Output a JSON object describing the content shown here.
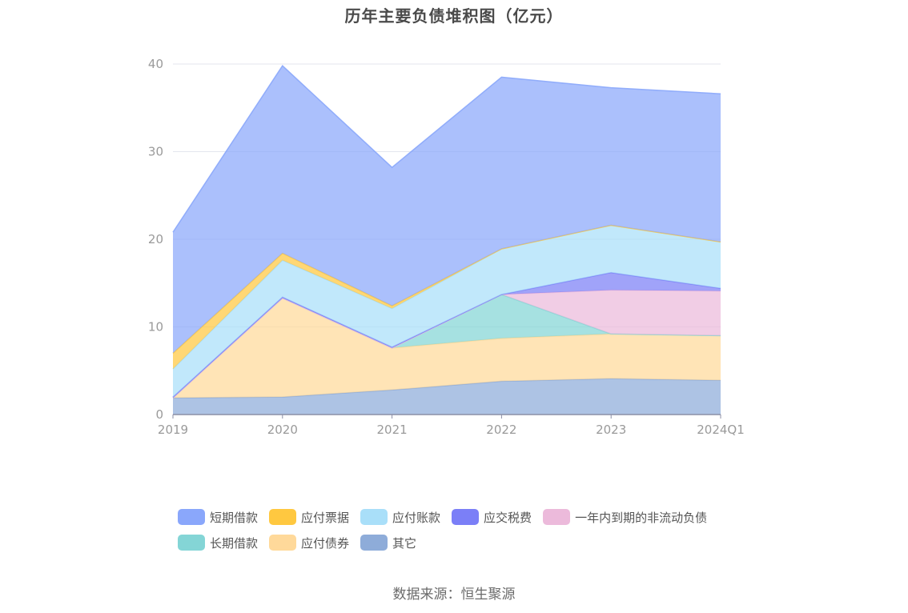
{
  "chart_data": {
    "type": "area",
    "title": "历年主要负债堆积图（亿元）",
    "source": "数据来源：恒生聚源",
    "categories": [
      "2019",
      "2020",
      "2021",
      "2022",
      "2023",
      "2024Q1"
    ],
    "ylim": [
      0,
      40
    ],
    "yticks": [
      0,
      10,
      20,
      30,
      40
    ],
    "grid": true,
    "stacked": true,
    "legend_position": "bottom",
    "series": [
      {
        "name": "其它",
        "color": "#8eacd9",
        "values": [
          1.9,
          2.0,
          2.8,
          3.8,
          4.1,
          3.9
        ]
      },
      {
        "name": "应付债券",
        "color": "#ffd99a",
        "values": [
          0.0,
          11.3,
          4.8,
          4.9,
          5.1,
          5.1
        ]
      },
      {
        "name": "长期借款",
        "color": "#84d5d6",
        "values": [
          0.0,
          0.0,
          0.0,
          5.0,
          0.0,
          0.0
        ]
      },
      {
        "name": "一年内到期的非流动负债",
        "color": "#ecbadb",
        "values": [
          0.0,
          0.0,
          0.0,
          0.0,
          5.0,
          5.1
        ]
      },
      {
        "name": "应交税费",
        "color": "#7b7ff7",
        "values": [
          0.1,
          0.1,
          0.1,
          0.0,
          2.0,
          0.3
        ]
      },
      {
        "name": "应付账款",
        "color": "#a9dff9",
        "values": [
          3.2,
          4.2,
          4.4,
          5.2,
          5.4,
          5.3
        ]
      },
      {
        "name": "应付票据",
        "color": "#ffc840",
        "values": [
          1.8,
          0.8,
          0.3,
          0.0,
          0.0,
          0.0
        ]
      },
      {
        "name": "短期借款",
        "color": "#8aa7fb",
        "values": [
          13.8,
          21.4,
          15.8,
          19.6,
          15.7,
          16.9
        ]
      }
    ]
  },
  "legend": {
    "row1": [
      {
        "label": "短期借款",
        "color": "#8aa7fb"
      },
      {
        "label": "应付票据",
        "color": "#ffc840"
      },
      {
        "label": "应付账款",
        "color": "#a9dff9"
      },
      {
        "label": "应交税费",
        "color": "#7b7ff7"
      },
      {
        "label": "一年内到期的非流动负债",
        "color": "#ecbadb"
      }
    ],
    "row2": [
      {
        "label": "长期借款",
        "color": "#84d5d6"
      },
      {
        "label": "应付债券",
        "color": "#ffd99a"
      },
      {
        "label": "其它",
        "color": "#8eacd9"
      }
    ]
  }
}
